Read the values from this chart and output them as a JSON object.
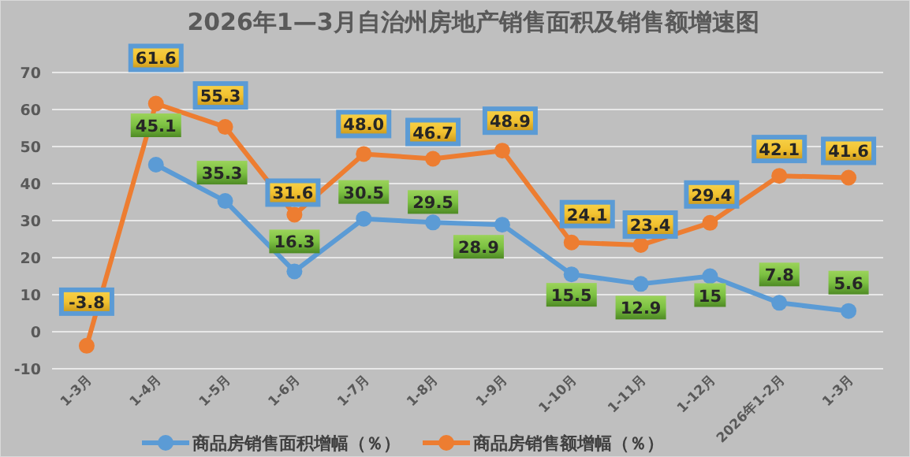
{
  "chart_data": {
    "type": "line",
    "title": "2026年1—3月自治州房地产销售面积及销售额增速图",
    "categories": [
      "1-3月",
      "1-4月",
      "1-5月",
      "1-6月",
      "1-7月",
      "1-8月",
      "1-9月",
      "1-10月",
      "1-11月",
      "1-12月",
      "2026年1-2月",
      "1-3月"
    ],
    "series": [
      {
        "name": "商品房销售面积增幅（％）",
        "color": "#5b9bd5",
        "values": [
          null,
          45.1,
          35.3,
          16.3,
          30.5,
          29.5,
          28.9,
          15.5,
          12.9,
          15,
          7.8,
          5.6
        ],
        "value_labels": [
          null,
          "45.1",
          "35.3",
          "16.3",
          "30.5",
          "29.5",
          "28.9",
          "15.5",
          "12.9",
          "15",
          "7.8",
          "5.6"
        ]
      },
      {
        "name": "商品房销售额增幅（％）",
        "color": "#ed7d31",
        "values": [
          -3.8,
          61.6,
          55.3,
          31.6,
          48.0,
          46.7,
          48.9,
          24.1,
          23.4,
          29.4,
          42.1,
          41.6
        ],
        "value_labels": [
          "-3.8",
          "61.6",
          "55.3",
          "31.6",
          "48.0",
          "46.7",
          "48.9",
          "24.1",
          "23.4",
          "29.4",
          "42.1",
          "41.6"
        ]
      }
    ],
    "ylim": [
      -10,
      70
    ],
    "yticks": [
      -10,
      0,
      10,
      20,
      30,
      40,
      50,
      60,
      70
    ],
    "grid": "y",
    "legend": "bottom",
    "marker": "circle",
    "line_style": "solid"
  }
}
